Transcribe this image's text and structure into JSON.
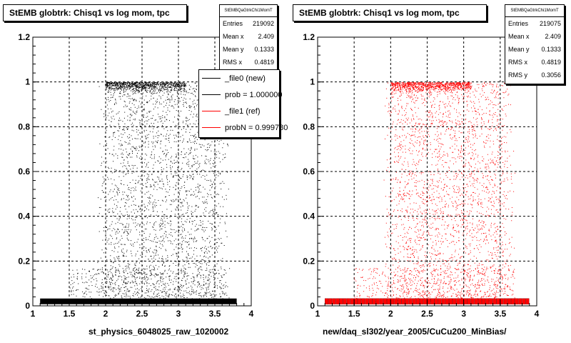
{
  "panels": [
    {
      "title": "StEMB globtrk: Chisq1 vs log mom, tpc",
      "stats": {
        "name": "StEMBQaGtrkChi1MomT",
        "rows": [
          {
            "label": "Entries",
            "value": "219092"
          },
          {
            "label": "Mean x",
            "value": "2.409"
          },
          {
            "label": "Mean y",
            "value": "0.1333"
          },
          {
            "label": "RMS x",
            "value": "0.4819"
          }
        ]
      },
      "legend": [
        {
          "text": "_file0 (new)",
          "color": "#000000"
        },
        {
          "text": "prob = 1.000000",
          "color": "#000000"
        },
        {
          "text": "_file1 (ref)",
          "color": "#ff0000"
        },
        {
          "text": "probN = 0.999780",
          "color": "#ff0000"
        }
      ],
      "xlabel": "st_physics_6048025_raw_1020002"
    },
    {
      "title": "StEMB globtrk: Chisq1 vs log mom, tpc",
      "stats": {
        "name": "StEMBQaGtrkChi1MomT",
        "rows": [
          {
            "label": "Entries",
            "value": "219075"
          },
          {
            "label": "Mean x",
            "value": "2.409"
          },
          {
            "label": "Mean y",
            "value": "0.1333"
          },
          {
            "label": "RMS x",
            "value": "0.4819"
          },
          {
            "label": "RMS y",
            "value": "0.3056"
          }
        ]
      },
      "xlabel": "new/daq_sl302/year_2005/CuCu200_MinBias/"
    }
  ],
  "chart_data": [
    {
      "type": "scatter",
      "title": "StEMB globtrk: Chisq1 vs log mom, tpc",
      "xlabel": "st_physics_6048025_raw_1020002",
      "ylabel": "",
      "xlim": [
        1,
        4
      ],
      "ylim": [
        0,
        1.2
      ],
      "x_ticks": [
        "1",
        "1.5",
        "2",
        "2.5",
        "3",
        "3.5",
        "4"
      ],
      "y_ticks": [
        "0",
        "0.2",
        "0.4",
        "0.6",
        "0.8",
        "1",
        "1.2"
      ],
      "grid": true,
      "color": "#000000",
      "series": [
        {
          "name": "_file0 (new)",
          "x_mean": 2.409,
          "y_mean": 0.1333,
          "x_rms": 0.4819,
          "entries": 219092
        }
      ],
      "bands": {
        "low_y": 0.02,
        "high_y": 1.0,
        "low_x": [
          1.1,
          3.8
        ],
        "high_x": [
          2.0,
          3.1
        ]
      },
      "marker": "dot"
    },
    {
      "type": "scatter",
      "title": "StEMB globtrk: Chisq1 vs log mom, tpc",
      "xlabel": "new/daq_sl302/year_2005/CuCu200_MinBias/",
      "ylabel": "",
      "xlim": [
        1,
        4
      ],
      "ylim": [
        0,
        1.2
      ],
      "x_ticks": [
        "1",
        "1.5",
        "2",
        "2.5",
        "3",
        "3.5",
        "4"
      ],
      "y_ticks": [
        "0",
        "0.2",
        "0.4",
        "0.6",
        "0.8",
        "1",
        "1.2"
      ],
      "grid": true,
      "color": "#ff0000",
      "series": [
        {
          "name": "_file1 (ref)",
          "x_mean": 2.409,
          "y_mean": 0.1333,
          "x_rms": 0.4819,
          "y_rms": 0.3056,
          "entries": 219075
        }
      ],
      "bands": {
        "low_y": 0.02,
        "high_y": 1.0,
        "low_x": [
          1.1,
          3.9
        ],
        "high_x": [
          2.0,
          3.1
        ]
      },
      "marker": "square-bins"
    }
  ]
}
